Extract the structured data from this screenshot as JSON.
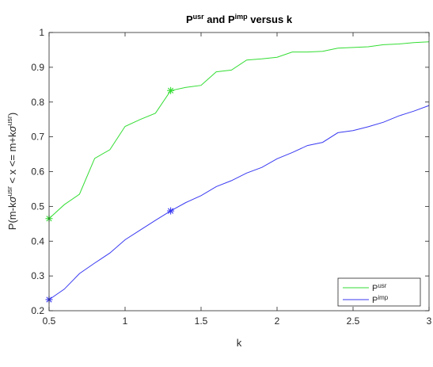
{
  "chart_data": {
    "type": "line",
    "title": {
      "p1": "P",
      "p1_sup": "usr",
      "mid": " and P",
      "p2_sup": "imp",
      "end": " versus k"
    },
    "xlabel": "k",
    "ylabel": {
      "a": "P(m-k",
      "b": "σ",
      "c": "usr",
      "d": " < x <= m+k",
      "e": "σ",
      "f": "usr",
      "g": ")"
    },
    "xlim": [
      0.5,
      3
    ],
    "ylim": [
      0.2,
      1
    ],
    "x_ticks": [
      0.5,
      1,
      1.5,
      2,
      2.5,
      3
    ],
    "x_tick_labels": [
      "0.5",
      "1",
      "1.5",
      "2",
      "2.5",
      "3"
    ],
    "y_ticks": [
      0.2,
      0.3,
      0.4,
      0.5,
      0.6,
      0.7,
      0.8,
      0.9,
      1
    ],
    "y_tick_labels": [
      "0.2",
      "0.3",
      "0.4",
      "0.5",
      "0.6",
      "0.7",
      "0.8",
      "0.9",
      "1"
    ],
    "grid": false,
    "legend_position": "bottom-right",
    "x": [
      0.5,
      0.6,
      0.7,
      0.8,
      0.9,
      1.0,
      1.1,
      1.2,
      1.3,
      1.4,
      1.5,
      1.6,
      1.7,
      1.8,
      1.9,
      2.0,
      2.1,
      2.2,
      2.3,
      2.4,
      2.5,
      2.6,
      2.7,
      2.8,
      2.9,
      3.0
    ],
    "series": [
      {
        "name": "P",
        "name_sup": "usr",
        "color": "#33dd33",
        "values": [
          0.465,
          0.505,
          0.535,
          0.638,
          0.663,
          0.73,
          0.75,
          0.768,
          0.833,
          0.842,
          0.848,
          0.887,
          0.892,
          0.921,
          0.924,
          0.929,
          0.944,
          0.944,
          0.946,
          0.955,
          0.957,
          0.959,
          0.965,
          0.967,
          0.971,
          0.973
        ],
        "marker_x": 1.3,
        "marker_y": 0.833
      },
      {
        "name": "P",
        "name_sup": "imp",
        "color": "#3a3af2",
        "values": [
          0.232,
          0.262,
          0.307,
          0.337,
          0.366,
          0.404,
          0.432,
          0.46,
          0.487,
          0.511,
          0.531,
          0.557,
          0.574,
          0.596,
          0.612,
          0.637,
          0.655,
          0.675,
          0.684,
          0.712,
          0.718,
          0.729,
          0.742,
          0.76,
          0.774,
          0.79
        ],
        "marker_x": 1.3,
        "marker_y": 0.487
      }
    ]
  }
}
